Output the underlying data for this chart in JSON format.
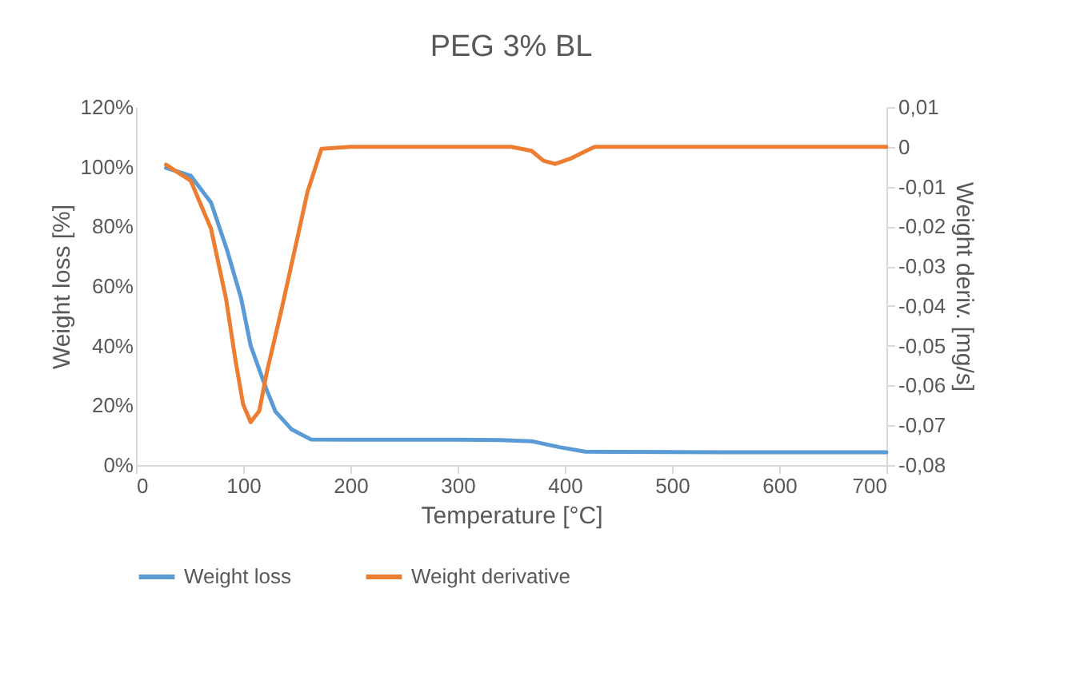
{
  "chart_data": {
    "type": "line",
    "title": "PEG 3% BL",
    "xlabel": "Temperature [°C]",
    "ylabel": "Weight loss [%]",
    "y2label": "Weight deriv. [mg/s]",
    "xlim": [
      0,
      700
    ],
    "xticks": [
      0,
      100,
      200,
      300,
      400,
      500,
      600,
      700
    ],
    "ylim": [
      0,
      120
    ],
    "yticks": [
      {
        "value": 0,
        "label": "0%"
      },
      {
        "value": 20,
        "label": "20%"
      },
      {
        "value": 40,
        "label": "40%"
      },
      {
        "value": 60,
        "label": "60%"
      },
      {
        "value": 80,
        "label": "80%"
      },
      {
        "value": 100,
        "label": "100%"
      },
      {
        "value": 120,
        "label": "120%"
      }
    ],
    "y2lim": [
      -0.08,
      0.01
    ],
    "y2ticks": [
      {
        "value": -0.08,
        "label": "-0,08"
      },
      {
        "value": -0.07,
        "label": "-0,07"
      },
      {
        "value": -0.06,
        "label": "-0,06"
      },
      {
        "value": -0.05,
        "label": "-0,05"
      },
      {
        "value": -0.04,
        "label": "-0,04"
      },
      {
        "value": -0.03,
        "label": "-0,03"
      },
      {
        "value": -0.02,
        "label": "-0,02"
      },
      {
        "value": -0.01,
        "label": "-0,01"
      },
      0,
      {
        "value": 0.01,
        "label": "0,01"
      }
    ],
    "grid": false,
    "legend": "bottom",
    "marker": "none",
    "line_style": "solid",
    "series": [
      {
        "name": "Weight loss",
        "color": "#5b9bd5",
        "x": [
          28,
          51,
          70,
          85,
          98,
          107,
          121,
          130,
          145,
          163,
          200,
          300,
          340,
          369,
          395,
          419,
          450,
          550,
          700
        ],
        "values": [
          99.6,
          97,
          88,
          72,
          56,
          40,
          26,
          18,
          12,
          8.6,
          8.5,
          8.5,
          8.4,
          8,
          6,
          4.5,
          4.4,
          4.3,
          4.3
        ]
      },
      {
        "name": "Weight derivative",
        "color": "#ed7d31",
        "axis": "y2",
        "x": [
          28,
          51,
          70,
          84,
          93,
          100,
          107,
          115,
          122,
          136,
          148,
          160,
          173,
          200,
          300,
          350,
          369,
          380,
          391,
          405,
          420,
          428,
          500,
          600,
          700
        ],
        "values": [
          -0.0045,
          -0.0085,
          -0.0206,
          -0.0382,
          -0.054,
          -0.0648,
          -0.0692,
          -0.0664,
          -0.0567,
          -0.0406,
          -0.026,
          -0.0113,
          -0.0005,
          0,
          0,
          0,
          -0.001,
          -0.0035,
          -0.0043,
          -0.003,
          -0.001,
          0,
          0,
          0,
          0
        ]
      }
    ]
  }
}
